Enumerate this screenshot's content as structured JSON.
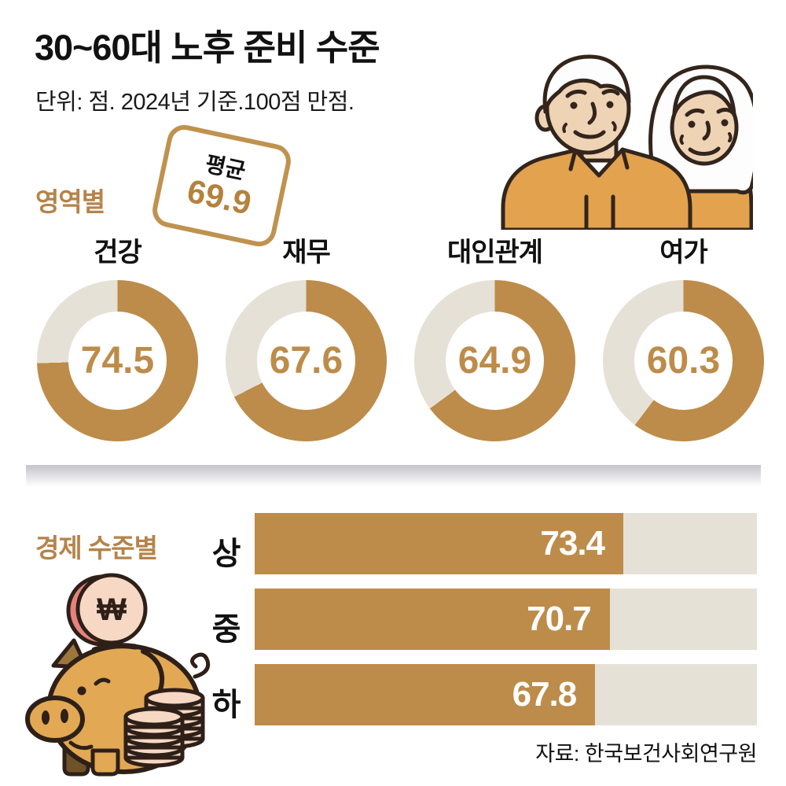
{
  "title": "30~60대 노후 준비 수준",
  "subtitle": "단위: 점. 2024년 기준.100점 만점.",
  "source": "자료: 한국보건사회연구원",
  "won_symbol": "₩",
  "colors": {
    "gold_fill": "#bd8c4a",
    "gold_label": "#b5834a",
    "badge_gold": "#b5823e",
    "track_beige": "#e6e1d7",
    "bar_value_text": "#ffffff",
    "text_black": "#111111"
  },
  "sections": {
    "by_area": {
      "label": "영역별",
      "badge": {
        "label": "평균",
        "value": "69.9"
      }
    },
    "by_economic_level": {
      "label": "경제 수준별"
    }
  },
  "chart_data": [
    {
      "type": "pie",
      "variant": "donut-small-multiples",
      "section_title": "영역별",
      "categories": [
        "건강",
        "재무",
        "대인관계",
        "여가"
      ],
      "values": [
        74.5,
        67.6,
        64.9,
        60.3
      ],
      "max": 100,
      "average": 69.9,
      "start": "12-oclock",
      "direction": "clockwise",
      "fill_color": "#bd8c4a",
      "remainder_color": "#e6e1d7"
    },
    {
      "type": "bar",
      "orientation": "horizontal",
      "section_title": "경제 수준별",
      "categories": [
        "상",
        "중",
        "하"
      ],
      "values": [
        73.4,
        70.7,
        67.8
      ],
      "xlim": [
        0,
        100
      ],
      "bar_color": "#bd8c4a",
      "track_color": "#e6e1d7",
      "value_label_color": "#ffffff",
      "value_label_position": "inside-right"
    }
  ],
  "illustrations": {
    "couple": "elderly-couple-in-orange-shirts",
    "piggy_bank": "piggy-bank-with-won-coin-and-coin-stacks"
  }
}
